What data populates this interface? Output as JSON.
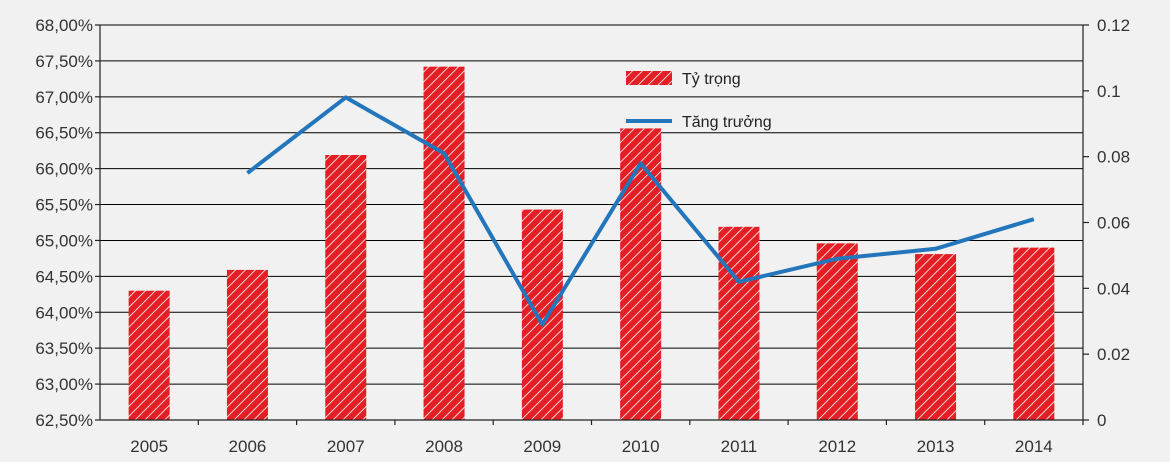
{
  "chart_data": {
    "type": "bar",
    "categories": [
      "2005",
      "2006",
      "2007",
      "2008",
      "2009",
      "2010",
      "2011",
      "2012",
      "2013",
      "2014"
    ],
    "series": [
      {
        "name": "Tỷ trọng",
        "type": "bar",
        "axis": "left",
        "color": "#e31e24",
        "pattern": "diagonal-white-stripes",
        "values": [
          64.3,
          64.59,
          66.19,
          67.42,
          65.43,
          66.56,
          65.19,
          64.96,
          64.81,
          64.9
        ]
      },
      {
        "name": "Tăng trưởng",
        "type": "line",
        "axis": "right",
        "color": "#2376bb",
        "values": [
          null,
          0.075,
          0.098,
          0.081,
          0.029,
          0.078,
          0.042,
          0.049,
          0.052,
          0.061
        ]
      }
    ],
    "y_left": {
      "lim": [
        62.5,
        68.0
      ],
      "ticks": [
        "62,50%",
        "63,00%",
        "63,50%",
        "64,00%",
        "64,50%",
        "65,00%",
        "65,50%",
        "66,00%",
        "66,50%",
        "67,00%",
        "67,50%",
        "68,00%"
      ]
    },
    "y_right": {
      "lim": [
        0,
        0.12
      ],
      "ticks": [
        "0",
        "0.02",
        "0.04",
        "0.06",
        "0.08",
        "0.1",
        "0.12"
      ]
    },
    "grid": true,
    "legend": {
      "position": "top-center-right",
      "entries": [
        "Tỷ trọng",
        "Tăng trưởng"
      ]
    }
  }
}
